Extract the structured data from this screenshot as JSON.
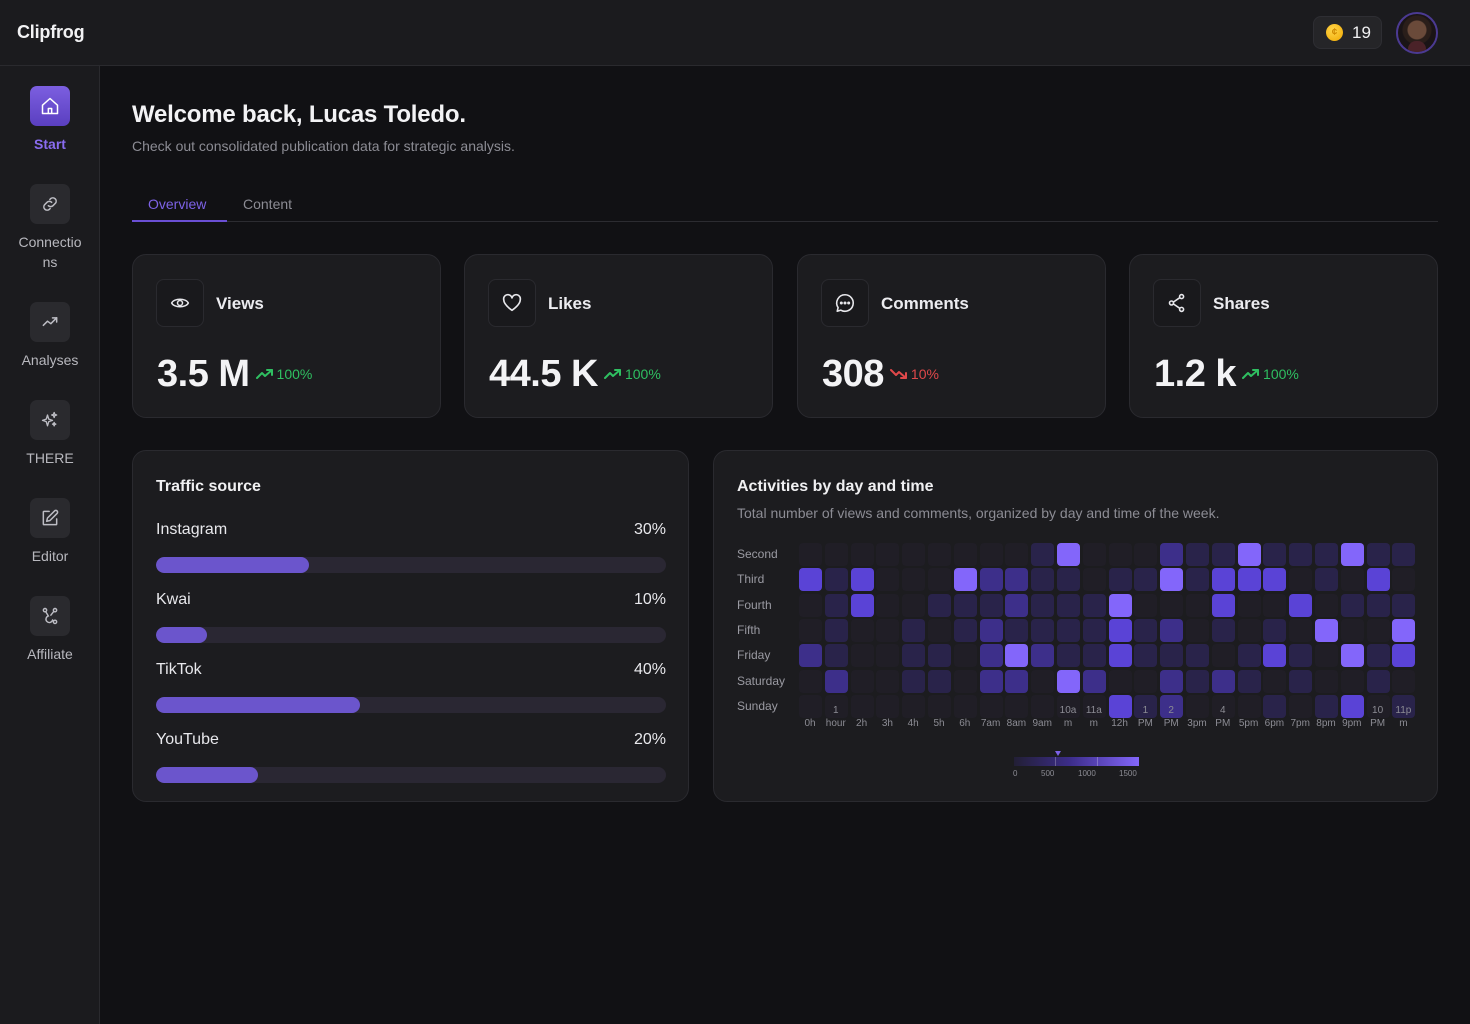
{
  "app": {
    "logo": "Clipfrog",
    "credits": "19",
    "coin_icon": "coin-icon",
    "avatar_icon": "user-avatar"
  },
  "sidebar": {
    "items": [
      {
        "label": "Start",
        "icon": "home-icon",
        "active": true
      },
      {
        "label": "Connections",
        "icon": "link-icon",
        "active": false
      },
      {
        "label": "Analyses",
        "icon": "trending-up-icon",
        "active": false
      },
      {
        "label": "THERE",
        "icon": "sparkles-icon",
        "active": false
      },
      {
        "label": "Editor",
        "icon": "edit-icon",
        "active": false
      },
      {
        "label": "Affiliate",
        "icon": "affiliate-icon",
        "active": false
      }
    ]
  },
  "header": {
    "title": "Welcome back, Lucas Toledo.",
    "subtitle": "Check out consolidated publication data for strategic analysis."
  },
  "tabs": [
    {
      "label": "Overview",
      "active": true
    },
    {
      "label": "Content",
      "active": false
    }
  ],
  "stats": [
    {
      "label": "Views",
      "icon": "eye-icon",
      "value": "3.5 M",
      "delta": "100%",
      "trend": "up"
    },
    {
      "label": "Likes",
      "icon": "heart-icon",
      "value": "44.5 K",
      "delta": "100%",
      "trend": "up"
    },
    {
      "label": "Comments",
      "icon": "comment-icon",
      "value": "308",
      "delta": "10%",
      "trend": "down"
    },
    {
      "label": "Shares",
      "icon": "share-icon",
      "value": "1.2 k",
      "delta": "100%",
      "trend": "up"
    }
  ],
  "traffic": {
    "title": "Traffic source",
    "sources": [
      {
        "name": "Instagram",
        "pct_label": "30%",
        "value": 30
      },
      {
        "name": "Kwai",
        "pct_label": "10%",
        "value": 10
      },
      {
        "name": "TikTok",
        "pct_label": "40%",
        "value": 40
      },
      {
        "name": "YouTube",
        "pct_label": "20%",
        "value": 20
      }
    ]
  },
  "activity": {
    "title": "Activities by day and time",
    "subtitle": "Total number of views and comments, organized by day and time of the week.",
    "legend_labels": [
      "0",
      "500",
      "1000",
      "1500"
    ],
    "legend_marker_value": 600
  },
  "colors": {
    "accent": "#7d62e6",
    "up": "#2fbf61",
    "down": "#e0484a",
    "heat_levels": [
      "#201e26",
      "#29234a",
      "#3d2f8a",
      "#5a43d6",
      "#8366fa"
    ]
  },
  "chart_data": {
    "type": "heatmap",
    "title": "Activities by day and time",
    "rows": [
      "Second",
      "Third",
      "Fourth",
      "Fifth",
      "Friday",
      "Saturday",
      "Sunday"
    ],
    "columns": [
      [
        "",
        "0h"
      ],
      [
        "1",
        "hour"
      ],
      [
        "",
        "2h"
      ],
      [
        "",
        "3h"
      ],
      [
        "",
        "4h"
      ],
      [
        "",
        "5h"
      ],
      [
        "",
        "6h"
      ],
      [
        "",
        "7am"
      ],
      [
        "",
        "8am"
      ],
      [
        "",
        "9am"
      ],
      [
        "10a",
        "m"
      ],
      [
        "11a",
        "m"
      ],
      [
        "",
        "12h"
      ],
      [
        "1",
        "PM"
      ],
      [
        "2",
        "PM"
      ],
      [
        "",
        "3pm"
      ],
      [
        "4",
        "PM"
      ],
      [
        "",
        "5pm"
      ],
      [
        "",
        "6pm"
      ],
      [
        "",
        "7pm"
      ],
      [
        "",
        "8pm"
      ],
      [
        "",
        "9pm"
      ],
      [
        "10",
        "PM"
      ],
      [
        "11p",
        "m"
      ]
    ],
    "scale": [
      0,
      1600
    ],
    "levels_by_column": [
      [
        0,
        3,
        0,
        0,
        2,
        0,
        0
      ],
      [
        0,
        1,
        1,
        1,
        1,
        2,
        0
      ],
      [
        0,
        3,
        3,
        0,
        0,
        0,
        0
      ],
      [
        0,
        0,
        0,
        0,
        0,
        0,
        0
      ],
      [
        0,
        0,
        0,
        1,
        1,
        1,
        0
      ],
      [
        0,
        0,
        1,
        0,
        1,
        1,
        0
      ],
      [
        0,
        4,
        1,
        1,
        0,
        0,
        0
      ],
      [
        0,
        2,
        1,
        2,
        2,
        2,
        0
      ],
      [
        0,
        2,
        2,
        1,
        4,
        2,
        0
      ],
      [
        1,
        1,
        1,
        1,
        2,
        0,
        0
      ],
      [
        4,
        1,
        1,
        1,
        1,
        4,
        0
      ],
      [
        0,
        0,
        1,
        1,
        1,
        2,
        0
      ],
      [
        0,
        1,
        4,
        3,
        3,
        0,
        3
      ],
      [
        0,
        1,
        0,
        1,
        1,
        0,
        1
      ],
      [
        2,
        4,
        0,
        2,
        1,
        2,
        2
      ],
      [
        1,
        1,
        0,
        0,
        1,
        1,
        0
      ],
      [
        1,
        3,
        3,
        1,
        0,
        2,
        0
      ],
      [
        4,
        3,
        0,
        0,
        1,
        1,
        0
      ],
      [
        1,
        3,
        0,
        1,
        3,
        0,
        1
      ],
      [
        1,
        0,
        3,
        0,
        1,
        1,
        0
      ],
      [
        1,
        1,
        0,
        4,
        0,
        0,
        1
      ],
      [
        4,
        0,
        1,
        0,
        4,
        0,
        3
      ],
      [
        1,
        3,
        1,
        0,
        1,
        1,
        0
      ],
      [
        1,
        0,
        1,
        4,
        3,
        0,
        1
      ]
    ]
  }
}
